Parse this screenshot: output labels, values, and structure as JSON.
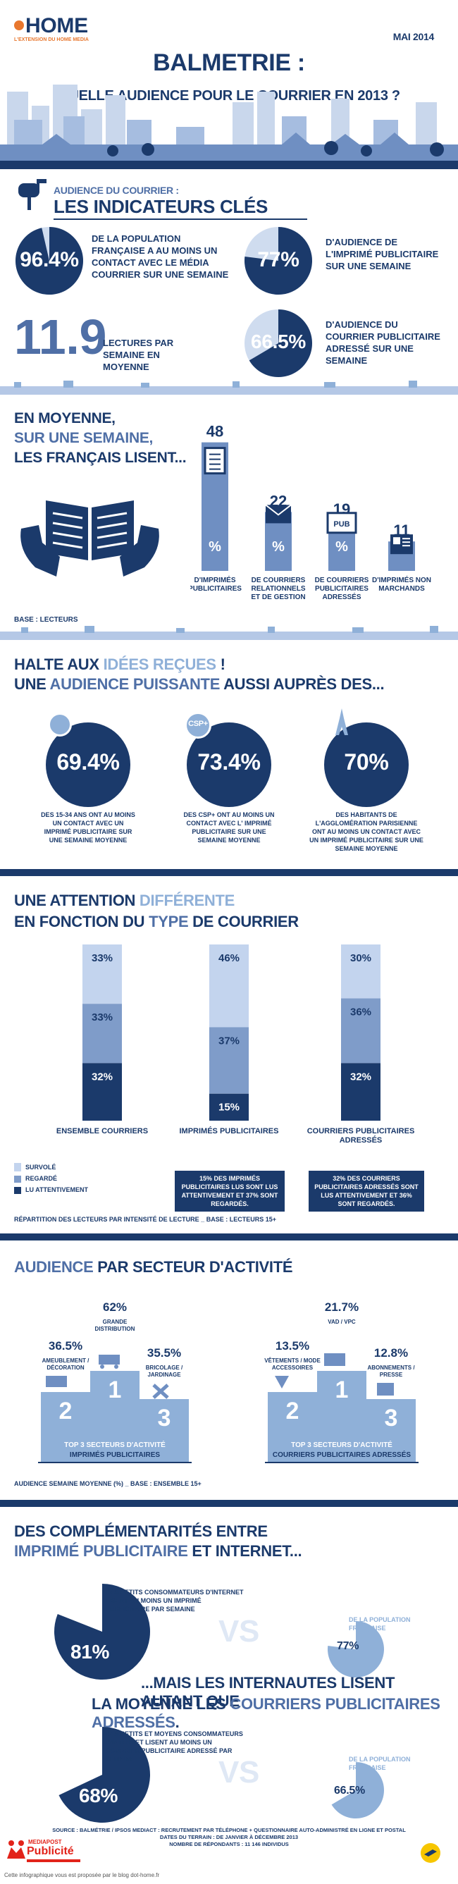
{
  "brand": {
    "logo_text": "HOME",
    "tagline": "L'EXTENSION DU HOME MEDIA",
    "date": "MAI 2014"
  },
  "header": {
    "title": "BALMETRIE :",
    "subtitle": "QUELLE AUDIENCE POUR LE COURRIER EN 2013 ?"
  },
  "indicators": {
    "heading_small": "AUDIENCE DU COURRIER :",
    "heading_big": "LES INDICATEURS CLÉS",
    "k1_value": "96.4%",
    "k1_text": "DE LA POPULATION FRANÇAISE A AU MOINS UN CONTACT AVEC LE MÉDIA COURRIER SUR UNE SEMAINE",
    "k2_value": "77%",
    "k2_text": "D'AUDIENCE DE L'IMPRIMÉ PUBLICITAIRE SUR UNE SEMAINE",
    "k3_value": "11.9",
    "k3_text": "LECTURES PAR SEMAINE EN MOYENNE",
    "k4_value": "66.5%",
    "k4_text": "D'AUDIENCE DU COURRIER PUBLICITAIRE ADRESSÉ SUR UNE SEMAINE"
  },
  "readings": {
    "line1": "EN MOYENNE,",
    "line2": "SUR UNE SEMAINE,",
    "line3": "LES FRANÇAIS LISENT...",
    "pct_symbol": "%",
    "pub_label": "PUB",
    "base": "BASE : LECTEURS"
  },
  "halte": {
    "title_a": "HALTE AUX ",
    "title_b": "IDÉES REÇUES",
    "title_c": " !",
    "line2_a": "UNE ",
    "line2_b": "AUDIENCE PUISSANTE",
    "line2_c": " AUSSI AUPRÈS DES...",
    "c1_value": "69.4%",
    "c1_text": "DES 15-34 ANS ONT AU MOINS UN CONTACT AVEC UN IMPRIMÉ PUBLICITAIRE SUR UNE SEMAINE MOYENNE",
    "c2_value": "73.4%",
    "c2_badge": "CSP+",
    "c2_text": "DES CSP+ ONT AU MOINS UN CONTACT AVEC L' IMPRIMÉ PUBLICITAIRE SUR UNE SEMAINE MOYENNE",
    "c3_value": "70%",
    "c3_text": "DES HABITANTS DE L'AGGLOMÉRATION PARISIENNE ONT AU MOINS UN CONTACT AVEC UN IMPRIMÉ PUBLICITAIRE SUR UNE SEMAINE MOYENNE"
  },
  "attention": {
    "title_a": "UNE ATTENTION ",
    "title_b": "DIFFÉRENTE",
    "line2_a": "EN FONCTION DU ",
    "line2_b": "TYPE",
    "line2_c": " DE COURRIER",
    "note1": "15% DES IMPRIMÉS PUBLICITAIRES LUS SONT LUS ATTENTIVEMENT ET 37% SONT REGARDÉS.",
    "note2": "32% DES COURRIERS PUBLICITAIRES ADRESSÉS SONT LUS ATTENTIVEMENT ET 36% SONT REGARDÉS.",
    "footer": "RÉPARTITION DES LECTEURS PAR INTENSITÉ DE LECTURE _ BASE : LECTEURS 15+"
  },
  "secteur": {
    "title_a": "AUDIENCE",
    "title_b": " PAR SECTEUR D'ACTIVITÉ",
    "p1_top": "TOP 3 SECTEURS D'ACTIVITÉ",
    "p1_bottom": "IMPRIMÉS PUBLICITAIRES",
    "p2_top": "TOP 3 SECTEURS D'ACTIVITÉ",
    "p2_bottom": "COURRIERS PUBLICITAIRES ADRESSÉS",
    "rank1": "1",
    "rank2": "2",
    "rank3": "3",
    "footer": "AUDIENCE SEMAINE MOYENNE (%) _ BASE : ENSEMBLE 15+"
  },
  "complement": {
    "title1": "DES COMPLÉMENTARITÉS ENTRE",
    "title2_a": "IMPRIMÉ PUBLICITAIRE",
    "title2_b": " ET INTERNET...",
    "i1_text": "DES PETITS CONSOMMATEURS D'INTERNET LISENT AU MOINS UN IMPRIMÉ PUBLICITAIRE PAR SEMAINE",
    "i1_value": "81%",
    "vs": "VS",
    "i1_pop_text": "DE LA POPULATION FRANÇAISE",
    "i1_pop_value": "77%",
    "title3": "...MAIS LES INTERNAUTES LISENT AUTANT QUE",
    "title4_a": "LA MOYENNE LES ",
    "title4_b": "COURRIERS PUBLICITAIRES ADRESSÉS",
    "title4_c": ".",
    "i2_text": "DES PETITS ET MOYENS CONSOMMATEURS D'INTERNET LISENT AU MOINS UN COURRIER PUBLICITAIRE ADRESSÉ PAR SEMAINE",
    "i2_value": "68%",
    "i2_pop_text": "DE LA POPULATION FRANÇAISE",
    "i2_pop_value": "66.5%"
  },
  "footer": {
    "source1": "SOURCE : BALMÉTRIE / IPSOS MEDIACT : RECRUTEMENT PAR TÉLÉPHONE + QUESTIONNAIRE AUTO-ADMINISTRÉ EN LIGNE ET POSTAL",
    "source2": "DATES DU TERRAIN : DE JANVIER À DÉCEMBRE 2013",
    "source3": "NOMBRE DE RÉPONDANTS : 11 146 INDIVIDUS",
    "logo_top": "MEDIAPOST",
    "logo_main": "Publicité",
    "credit": "Cette infographique vous est proposée par le blog dot-home.fr"
  },
  "colors": {
    "navy": "#1b3a6b",
    "mid": "#4f6fa6",
    "light": "#b5c8e6",
    "accent_light": "#8fb0d8",
    "orange": "#e8772e"
  },
  "chart_data": [
    {
      "type": "bar",
      "categories": [
        "D'IMPRIMÉS PUBLICITAIRES",
        "DE COURRIERS RELATIONNELS ET DE GESTION",
        "DE COURRIERS PUBLICITAIRES ADRESSÉS",
        "D'IMPRIMÉS NON MARCHANDS"
      ],
      "values": [
        48,
        22,
        19,
        11
      ],
      "icons": [
        "flyer-icon",
        "envelope-icon",
        "pub-box-icon",
        "newspaper-icon"
      ]
    },
    {
      "type": "bar",
      "categories": [
        "ENSEMBLE COURRIERS",
        "IMPRIMÉS PUBLICITAIRES",
        "COURRIERS PUBLICITAIRES ADRESSÉS"
      ],
      "series": [
        {
          "name": "SURVOLÉ",
          "values": [
            33,
            46,
            30
          ]
        },
        {
          "name": "REGARDÉ",
          "values": [
            33,
            37,
            36
          ]
        },
        {
          "name": "LU ATTENTIVEMENT",
          "values": [
            32,
            15,
            32
          ]
        }
      ],
      "stacked": true,
      "colors": [
        "#c3d4ee",
        "#7f9cc9",
        "#1b3a6b"
      ]
    },
    {
      "type": "bar",
      "title": "TOP 3 SECTEURS D'ACTIVITÉ IMPRIMÉS PUBLICITAIRES",
      "categories": [
        "GRANDE DISTRIBUTION",
        "AMEUBLEMENT / DÉCORATION",
        "BRICOLAGE / JARDINAGE"
      ],
      "values": [
        62,
        36.5,
        35.5
      ],
      "ranks": [
        1,
        2,
        3
      ]
    },
    {
      "type": "bar",
      "title": "TOP 3 SECTEURS D'ACTIVITÉ COURRIERS PUBLICITAIRES ADRESSÉS",
      "categories": [
        "VAD / VPC",
        "VÊTEMENTS / MODE ACCESSOIRES",
        "ABONNEMENTS / PRESSE"
      ],
      "values": [
        21.7,
        13.5,
        12.8
      ],
      "ranks": [
        1,
        2,
        3
      ]
    }
  ]
}
